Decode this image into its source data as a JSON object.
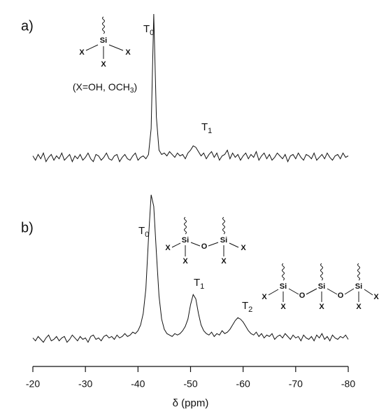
{
  "chart_data": [
    {
      "type": "line",
      "panel_label": "a)",
      "x": [
        -20,
        -20.5,
        -21,
        -21.5,
        -22,
        -22.5,
        -23,
        -23.5,
        -24,
        -24.5,
        -25,
        -25.5,
        -26,
        -26.5,
        -27,
        -27.5,
        -28,
        -28.5,
        -29,
        -29.5,
        -30,
        -30.5,
        -31,
        -31.5,
        -32,
        -32.5,
        -33,
        -33.5,
        -34,
        -34.5,
        -35,
        -35.5,
        -36,
        -36.5,
        -37,
        -37.5,
        -38,
        -38.5,
        -39,
        -39.5,
        -40,
        -40.5,
        -41,
        -41.5,
        -42,
        -42.5,
        -43,
        -43.5,
        -44,
        -44.5,
        -45,
        -45.5,
        -46,
        -46.5,
        -47,
        -47.5,
        -48,
        -48.5,
        -49,
        -49.5,
        -50,
        -50.5,
        -51,
        -51.5,
        -52,
        -52.5,
        -53,
        -53.5,
        -54,
        -54.5,
        -55,
        -55.5,
        -56,
        -56.5,
        -57,
        -57.5,
        -58,
        -58.5,
        -59,
        -59.5,
        -60,
        -60.5,
        -61,
        -61.5,
        -62,
        -62.5,
        -63,
        -63.5,
        -64,
        -64.5,
        -65,
        -65.5,
        -66,
        -66.5,
        -67,
        -67.5,
        -68,
        -68.5,
        -69,
        -69.5,
        -70,
        -70.5,
        -71,
        -71.5,
        -72,
        -72.5,
        -73,
        -73.5,
        -74,
        -74.5,
        -75,
        -75.5,
        -76,
        -76.5,
        -77,
        -77.5,
        -78,
        -78.5,
        -79,
        -79.5,
        -80
      ],
      "values": [
        1,
        -2,
        2,
        -1,
        3,
        -3,
        0,
        2,
        -2,
        1,
        -1,
        3,
        -2,
        0,
        2,
        -3,
        1,
        -1,
        2,
        -2,
        0,
        3,
        -1,
        -3,
        2,
        1,
        -2,
        0,
        3,
        -1,
        -2,
        1,
        2,
        -3,
        0,
        2,
        -1,
        -2,
        1,
        3,
        -2,
        0,
        1,
        -1,
        2,
        20,
        100,
        28,
        5,
        2,
        3,
        1,
        4,
        2,
        0,
        3,
        1,
        2,
        -1,
        3,
        5,
        8,
        7,
        4,
        1,
        3,
        -1,
        2,
        4,
        0,
        3,
        -2,
        1,
        2,
        5,
        -1,
        3,
        0,
        2,
        -2,
        1,
        3,
        -1,
        2,
        0,
        4,
        -2,
        1,
        3,
        -1,
        2,
        -2,
        0,
        3,
        1,
        -1,
        2,
        -3,
        1,
        2,
        -1,
        3,
        0,
        -2,
        2,
        1,
        -1,
        3,
        -2,
        0,
        2,
        -1,
        3,
        0,
        -2,
        1,
        2,
        -1,
        3,
        0,
        1
      ],
      "color": "#111111",
      "xlim": [
        -20,
        -80
      ],
      "ylim": [
        -10,
        100
      ],
      "peak_labels": [
        {
          "text": "T",
          "sub": "0"
        },
        {
          "text": "T",
          "sub": "1"
        }
      ],
      "structures": [
        {
          "atoms": [
            "Si",
            "X",
            "X",
            "X"
          ]
        }
      ],
      "note": {
        "text": "(X=OH, OCH",
        "sub": "3",
        "end": ")"
      }
    },
    {
      "type": "line",
      "panel_label": "b)",
      "x": [
        -20,
        -20.5,
        -21,
        -21.5,
        -22,
        -22.5,
        -23,
        -23.5,
        -24,
        -24.5,
        -25,
        -25.5,
        -26,
        -26.5,
        -27,
        -27.5,
        -28,
        -28.5,
        -29,
        -29.5,
        -30,
        -30.5,
        -31,
        -31.5,
        -32,
        -32.5,
        -33,
        -33.5,
        -34,
        -34.5,
        -35,
        -35.5,
        -36,
        -36.5,
        -37,
        -37.5,
        -38,
        -38.5,
        -39,
        -39.5,
        -40,
        -40.5,
        -41,
        -41.5,
        -42,
        -42.5,
        -43,
        -43.5,
        -44,
        -44.5,
        -45,
        -45.5,
        -46,
        -46.5,
        -47,
        -47.5,
        -48,
        -48.5,
        -49,
        -49.5,
        -50,
        -50.5,
        -51,
        -51.5,
        -52,
        -52.5,
        -53,
        -53.5,
        -54,
        -54.5,
        -55,
        -55.5,
        -56,
        -56.5,
        -57,
        -57.5,
        -58,
        -58.5,
        -59,
        -59.5,
        -60,
        -60.5,
        -61,
        -61.5,
        -62,
        -62.5,
        -63,
        -63.5,
        -64,
        -64.5,
        -65,
        -65.5,
        -66,
        -66.5,
        -67,
        -67.5,
        -68,
        -68.5,
        -69,
        -69.5,
        -70,
        -70.5,
        -71,
        -71.5,
        -72,
        -72.5,
        -73,
        -73.5,
        -74,
        -74.5,
        -75,
        -75.5,
        -76,
        -76.5,
        -77,
        -77.5,
        -78,
        -78.5,
        -79,
        -79.5,
        -80
      ],
      "values": [
        1,
        -1,
        2,
        0,
        -2,
        1,
        3,
        -1,
        0,
        2,
        -1,
        1,
        2,
        -2,
        0,
        3,
        1,
        -1,
        2,
        0,
        1,
        -2,
        2,
        3,
        0,
        1,
        -1,
        2,
        3,
        1,
        2,
        0,
        3,
        1,
        2,
        4,
        2,
        3,
        5,
        4,
        6,
        10,
        18,
        35,
        70,
        100,
        92,
        60,
        30,
        14,
        7,
        4,
        3,
        2,
        4,
        3,
        4,
        6,
        9,
        14,
        24,
        31,
        28,
        18,
        10,
        6,
        4,
        3,
        5,
        2,
        4,
        3,
        6,
        4,
        5,
        7,
        10,
        13,
        15,
        14,
        12,
        9,
        6,
        4,
        3,
        5,
        2,
        4,
        1,
        3,
        2,
        4,
        0,
        2,
        3,
        1,
        4,
        2,
        0,
        3,
        1,
        2,
        -1,
        3,
        1,
        0,
        2,
        -1,
        3,
        1,
        4,
        0,
        2,
        -1,
        3,
        1,
        0,
        2,
        1,
        3,
        0
      ],
      "color": "#111111",
      "xlim": [
        -20,
        -80
      ],
      "ylim": [
        -10,
        100
      ],
      "xticks": [
        -20,
        -30,
        -40,
        -50,
        -60,
        -70,
        -80
      ],
      "xlabel": "δ (ppm)",
      "peak_labels": [
        {
          "text": "T",
          "sub": "0"
        },
        {
          "text": "T",
          "sub": "1"
        },
        {
          "text": "T",
          "sub": "2"
        }
      ],
      "structures": [
        {
          "atoms": [
            "Si",
            "Si",
            "O",
            "X",
            "X",
            "X",
            "X"
          ]
        },
        {
          "atoms": [
            "Si",
            "Si",
            "Si",
            "O",
            "O",
            "X",
            "X",
            "X",
            "X",
            "X"
          ]
        }
      ]
    }
  ]
}
